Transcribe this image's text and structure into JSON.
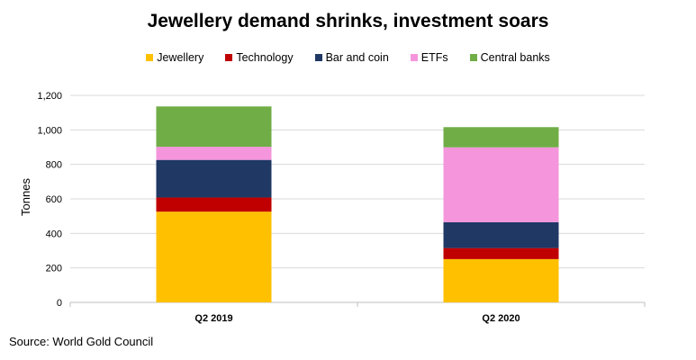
{
  "chart_data": {
    "type": "bar",
    "stacked": true,
    "title": "Jewellery demand shrinks, investment soars",
    "xlabel": "",
    "ylabel": "Tonnes",
    "categories": [
      "Q2 2019",
      "Q2 2020"
    ],
    "ylim": [
      0,
      1200
    ],
    "yticks": [
      0,
      200,
      400,
      600,
      800,
      1000,
      1200
    ],
    "ytick_labels": [
      "0",
      "200",
      "400",
      "600",
      "800",
      "1,000",
      "1,200"
    ],
    "grid": true,
    "legend_position": "top",
    "series": [
      {
        "name": "Jewellery",
        "color": "#FFC000",
        "values": [
          526,
          251
        ]
      },
      {
        "name": "Technology",
        "color": "#C00000",
        "values": [
          82,
          64
        ]
      },
      {
        "name": "Bar and coin",
        "color": "#1F3864",
        "values": [
          218,
          150
        ]
      },
      {
        "name": "ETFs",
        "color": "#F595DC",
        "values": [
          76,
          434
        ]
      },
      {
        "name": "Central banks",
        "color": "#70AD47",
        "values": [
          234,
          117
        ]
      }
    ]
  },
  "source": "Source: World Gold Council"
}
